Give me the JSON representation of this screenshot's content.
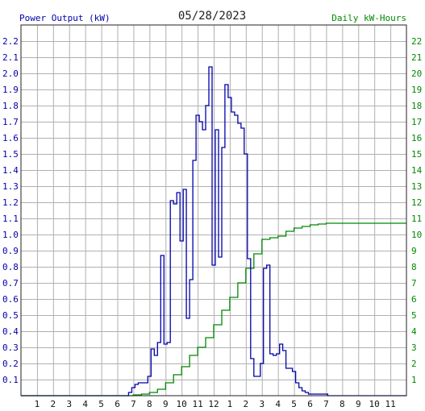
{
  "chart_data": {
    "type": "line",
    "title": "05/28/2023",
    "left_axis_label": "Power Output (kW)",
    "right_axis_label": "Daily kW-Hours",
    "x_tick_labels": [
      "1",
      "2",
      "3",
      "4",
      "5",
      "6",
      "7",
      "8",
      "9",
      "10",
      "11",
      "12",
      "1",
      "2",
      "3",
      "4",
      "5",
      "6",
      "7",
      "8",
      "9",
      "10",
      "11"
    ],
    "y_left_ticks": [
      "0.1",
      "0.2",
      "0.3",
      "0.4",
      "0.5",
      "0.6",
      "0.7",
      "0.8",
      "0.9",
      "1.0",
      "1.1",
      "1.2",
      "1.3",
      "1.4",
      "1.5",
      "1.6",
      "1.7",
      "1.8",
      "1.9",
      "2.0",
      "2.1",
      "2.2"
    ],
    "y_right_ticks": [
      "1",
      "2",
      "3",
      "4",
      "5",
      "6",
      "7",
      "8",
      "9",
      "10",
      "11",
      "12",
      "13",
      "14",
      "15",
      "16",
      "17",
      "18",
      "19",
      "20",
      "21",
      "22"
    ],
    "x_range_hours": [
      0,
      24
    ],
    "y_left_range": [
      0,
      2.3
    ],
    "y_right_range": [
      0,
      23
    ],
    "grid": true,
    "series": [
      {
        "axis": "left",
        "color": "#0000aa",
        "step": true,
        "x": [
          0,
          6.7,
          6.9,
          7.1,
          7.3,
          7.5,
          7.7,
          7.9,
          8.1,
          8.3,
          8.5,
          8.7,
          8.9,
          9.1,
          9.3,
          9.5,
          9.7,
          9.9,
          10.1,
          10.3,
          10.5,
          10.7,
          10.9,
          11.1,
          11.3,
          11.5,
          11.7,
          11.9,
          12.1,
          12.3,
          12.5,
          12.7,
          12.9,
          13.1,
          13.3,
          13.5,
          13.7,
          13.9,
          14.1,
          14.3,
          14.5,
          14.7,
          14.9,
          15.1,
          15.3,
          15.5,
          15.7,
          15.9,
          16.1,
          16.3,
          16.5,
          16.7,
          16.9,
          17.1,
          17.3,
          17.5,
          17.7,
          17.9,
          18.1,
          18.3,
          18.5,
          18.7,
          18.9,
          19.1,
          19.3,
          19.5,
          19.7,
          19.9,
          20.1,
          20.3,
          20.5,
          20.7,
          24
        ],
        "values": [
          0,
          0.02,
          0.05,
          0.07,
          0.08,
          0.08,
          0.08,
          0.12,
          0.29,
          0.25,
          0.33,
          0.87,
          0.32,
          0.33,
          1.21,
          1.19,
          1.26,
          0.96,
          1.28,
          0.48,
          0.72,
          1.46,
          1.74,
          1.7,
          1.65,
          1.8,
          2.04,
          0.81,
          1.65,
          0.86,
          1.54,
          1.93,
          1.85,
          1.76,
          1.74,
          1.69,
          1.66,
          1.5,
          0.85,
          0.23,
          0.12,
          0.12,
          0.2,
          0.79,
          0.81,
          0.26,
          0.25,
          0.26,
          0.32,
          0.28,
          0.17,
          0.17,
          0.15,
          0.08,
          0.05,
          0.03,
          0.02,
          0.01,
          0.01,
          0.01,
          0.01,
          0.01,
          0.01,
          0.0,
          0.0,
          0.0,
          0.0,
          0.0,
          0.0,
          0.0,
          0.0,
          0.0,
          0.0
        ]
      },
      {
        "axis": "right",
        "color": "#008800",
        "step": true,
        "x": [
          0,
          7,
          7.5,
          8,
          8.5,
          9,
          9.5,
          10,
          10.5,
          11,
          11.5,
          12,
          12.5,
          13,
          13.5,
          14,
          14.5,
          15,
          15.5,
          16,
          16.5,
          17,
          17.5,
          18,
          18.5,
          19,
          19.5,
          20,
          20.5,
          24
        ],
        "values": [
          0,
          0.05,
          0.1,
          0.2,
          0.4,
          0.8,
          1.3,
          1.8,
          2.5,
          3.0,
          3.6,
          4.4,
          5.3,
          6.1,
          7.0,
          7.9,
          8.8,
          9.7,
          9.8,
          9.9,
          10.2,
          10.4,
          10.5,
          10.6,
          10.65,
          10.7,
          10.7,
          10.7,
          10.7,
          10.7
        ]
      }
    ]
  }
}
